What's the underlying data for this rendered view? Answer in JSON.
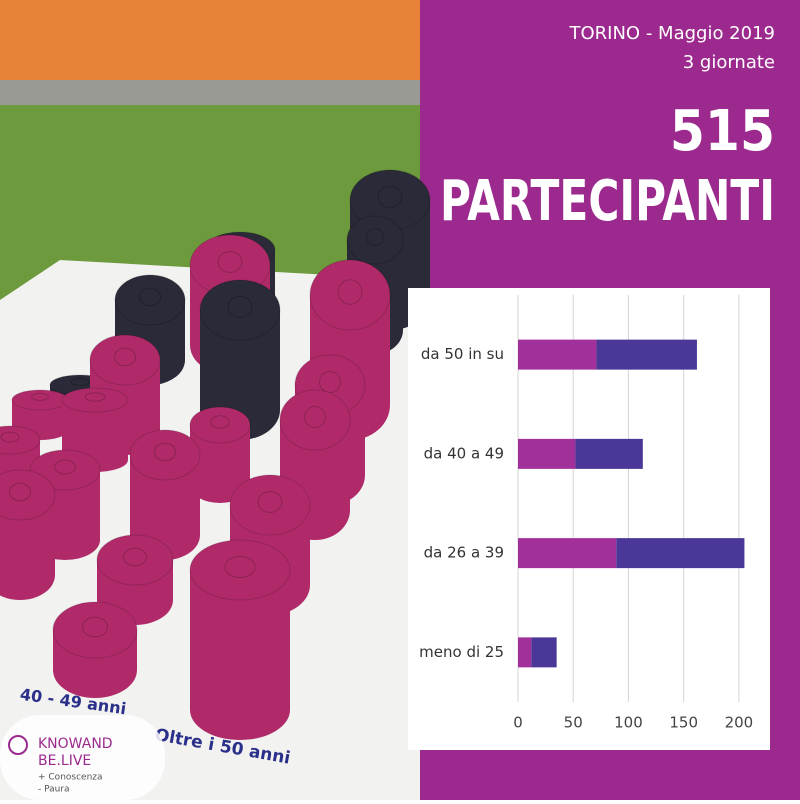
{
  "header": {
    "place_date": "TORINO - Maggio 2019",
    "days": "3 giornate",
    "count": "515",
    "headline": "PARTECIPANTI"
  },
  "photo": {
    "board_label_1": "40 - 49 anni",
    "board_label_2": "Oltre i 50 anni",
    "logo_line_1": "KNOWAND",
    "logo_line_2": "BE.LIVE",
    "logo_line_3": "+ Conoscenza",
    "logo_line_4": "- Paura"
  },
  "chart_data": {
    "type": "stacked-horizontal-bar",
    "categories": [
      "da 50 in su",
      "da 40 a 49",
      "da 26 a 39",
      "meno di 25"
    ],
    "series": [
      {
        "color": "#a2309a",
        "values": [
          71,
          52,
          89,
          12
        ]
      },
      {
        "color": "#4a3797",
        "values": [
          91,
          61,
          116,
          23
        ]
      }
    ],
    "xlim": [
      0,
      220
    ],
    "xticks": [
      0,
      50,
      100,
      150,
      200
    ],
    "grid": true
  }
}
